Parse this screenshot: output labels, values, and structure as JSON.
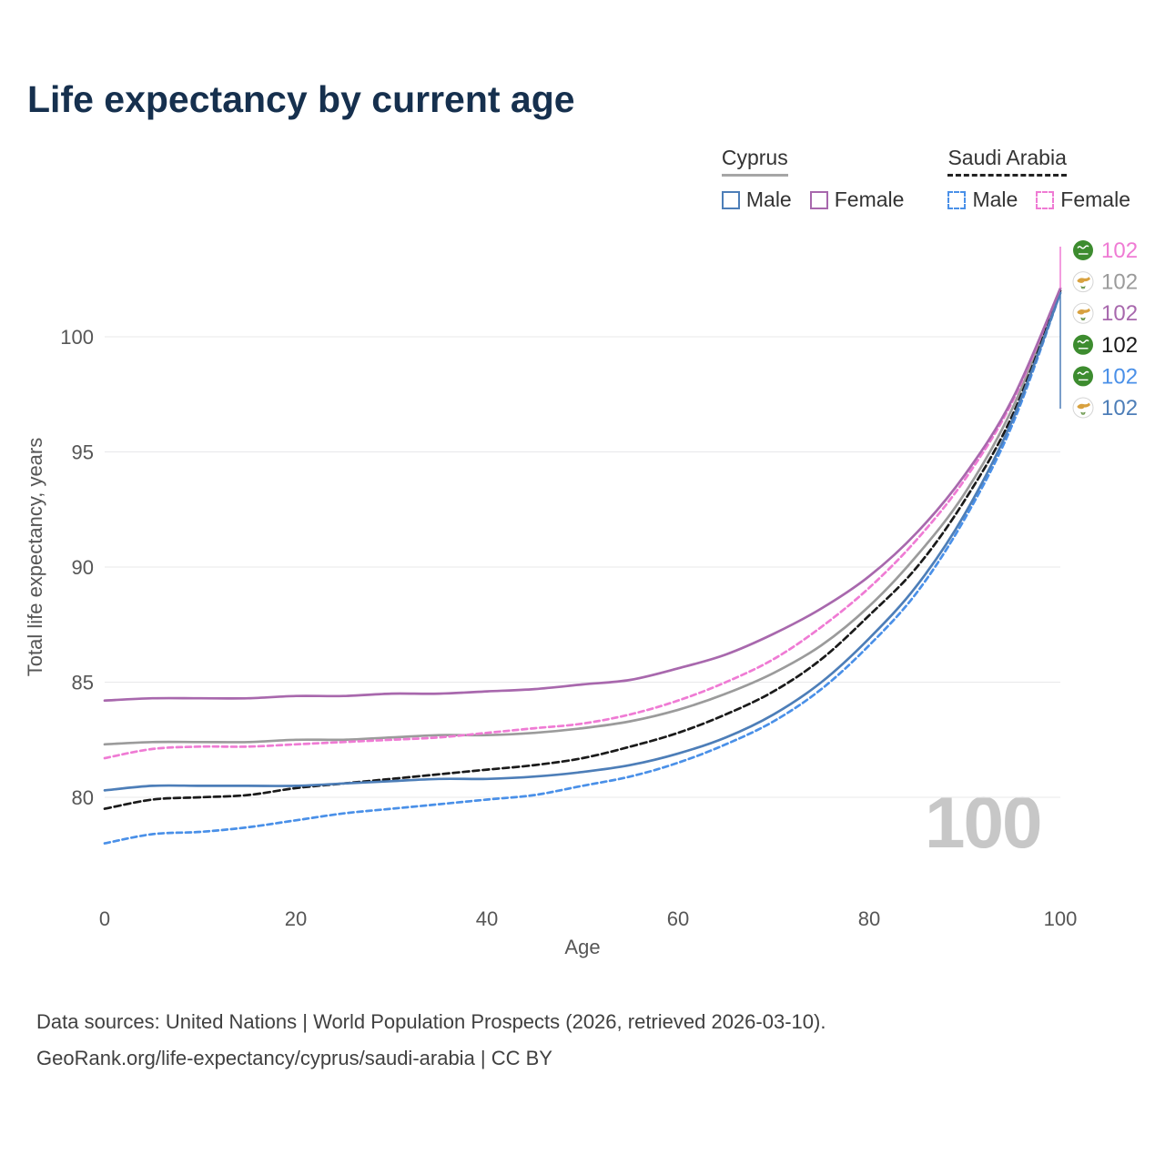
{
  "title": "Life expectancy by current age",
  "watermark": "100",
  "legend": {
    "groups": [
      {
        "name": "Cyprus",
        "line_style": "solid",
        "underline_color": "#a6a6a6",
        "items": [
          {
            "label": "Male",
            "color": "#4d7eb8",
            "dashed": false
          },
          {
            "label": "Female",
            "color": "#a868ad",
            "dashed": false
          }
        ]
      },
      {
        "name": "Saudi Arabia",
        "line_style": "dashed",
        "underline_color": "#222222",
        "items": [
          {
            "label": "Male",
            "color": "#4a90e8",
            "dashed": true
          },
          {
            "label": "Female",
            "color": "#ef7bd4",
            "dashed": true
          }
        ]
      }
    ]
  },
  "footer": {
    "line1": "Data sources: United Nations | World Population Prospects (2026, retrieved 2026-03-10).",
    "line2": "GeoRank.org/life-expectancy/cyprus/saudi-arabia | CC BY"
  },
  "chart_data": {
    "type": "line",
    "title": "Life expectancy by current age",
    "xlabel": "Age",
    "ylabel": "Total life expectancy, years",
    "xlim": [
      0,
      100
    ],
    "ylim": [
      76,
      103
    ],
    "x_ticks": [
      0,
      20,
      40,
      60,
      80,
      100
    ],
    "y_ticks": [
      80,
      85,
      90,
      95,
      100
    ],
    "grid": "horizontal-only",
    "legend_position": "top-right",
    "x": [
      0,
      5,
      10,
      15,
      20,
      25,
      30,
      35,
      40,
      45,
      50,
      55,
      60,
      65,
      70,
      75,
      80,
      85,
      90,
      95,
      100
    ],
    "series": [
      {
        "name": "Cyprus",
        "color": "#9b9b9b",
        "dashed": false,
        "dash": null,
        "values": [
          82.3,
          82.4,
          82.4,
          82.4,
          82.5,
          82.5,
          82.6,
          82.7,
          82.7,
          82.8,
          83.0,
          83.3,
          83.8,
          84.5,
          85.4,
          86.6,
          88.3,
          90.5,
          93.2,
          96.9,
          102.0
        ]
      },
      {
        "name": "Saudi Arabia",
        "color": "#1a1a1a",
        "dashed": true,
        "dash": "7 4",
        "values": [
          79.5,
          79.9,
          80.0,
          80.1,
          80.4,
          80.6,
          80.8,
          81.0,
          81.2,
          81.4,
          81.7,
          82.2,
          82.8,
          83.6,
          84.6,
          86.0,
          87.9,
          90.0,
          92.9,
          96.6,
          102.0
        ]
      },
      {
        "name": "Saudi Arabia Male",
        "color": "#4a90e8",
        "dashed": true,
        "dash": "6 4",
        "values": [
          78.0,
          78.4,
          78.5,
          78.7,
          79.0,
          79.3,
          79.5,
          79.7,
          79.9,
          80.1,
          80.5,
          80.9,
          81.5,
          82.3,
          83.3,
          84.7,
          86.6,
          88.9,
          92.1,
          96.2,
          101.9
        ]
      },
      {
        "name": "Saudi Arabia Female",
        "color": "#ef7bd4",
        "dashed": true,
        "dash": "6 4",
        "values": [
          81.7,
          82.1,
          82.2,
          82.2,
          82.3,
          82.4,
          82.5,
          82.6,
          82.8,
          83.0,
          83.2,
          83.6,
          84.2,
          85.0,
          86.0,
          87.4,
          89.1,
          91.2,
          93.8,
          97.2,
          102.1
        ]
      },
      {
        "name": "Cyprus Male",
        "color": "#4d7eb8",
        "dashed": false,
        "dash": null,
        "values": [
          80.3,
          80.5,
          80.5,
          80.5,
          80.5,
          80.6,
          80.7,
          80.8,
          80.8,
          80.9,
          81.1,
          81.4,
          81.9,
          82.6,
          83.6,
          85.0,
          86.9,
          89.2,
          92.3,
          96.4,
          101.9
        ]
      },
      {
        "name": "Cyprus Female",
        "color": "#a868ad",
        "dashed": false,
        "dash": null,
        "values": [
          84.2,
          84.3,
          84.3,
          84.3,
          84.4,
          84.4,
          84.5,
          84.5,
          84.6,
          84.7,
          84.9,
          85.1,
          85.6,
          86.2,
          87.1,
          88.2,
          89.6,
          91.5,
          94.0,
          97.3,
          102.1
        ]
      }
    ],
    "end_labels": [
      {
        "value": "102",
        "color": "#ef7bd4",
        "flag": "saudi-arabia",
        "series": "Saudi Arabia Female"
      },
      {
        "value": "102",
        "color": "#9b9b9b",
        "flag": "cyprus",
        "series": "Cyprus"
      },
      {
        "value": "102",
        "color": "#a868ad",
        "flag": "cyprus",
        "series": "Cyprus Female"
      },
      {
        "value": "102",
        "color": "#1a1a1a",
        "flag": "saudi-arabia",
        "series": "Saudi Arabia"
      },
      {
        "value": "102",
        "color": "#4a90e8",
        "flag": "saudi-arabia",
        "series": "Saudi Arabia Male"
      },
      {
        "value": "102",
        "color": "#4d7eb8",
        "flag": "cyprus",
        "series": "Cyprus Male"
      }
    ]
  }
}
